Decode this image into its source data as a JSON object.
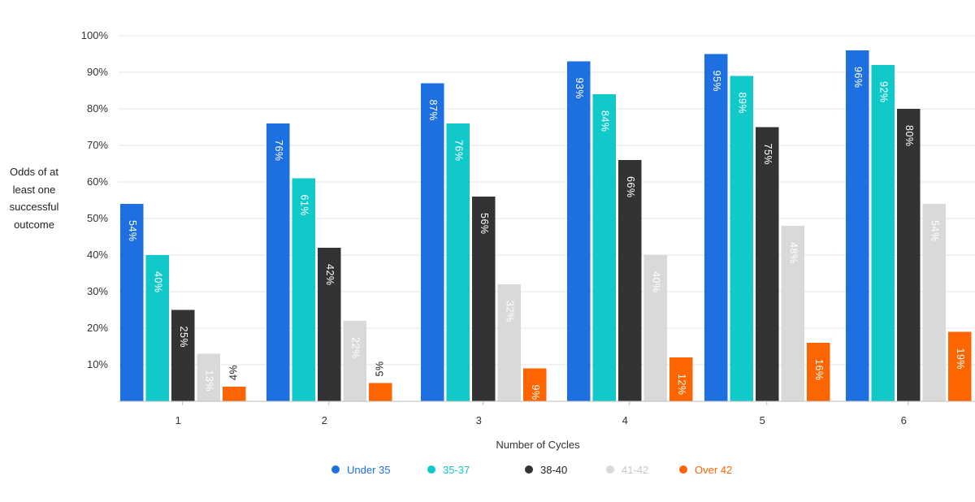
{
  "chart_data": {
    "type": "bar",
    "title": "",
    "ylabel": "Odds of at least one successful outcome",
    "ylabel_lines": [
      "Odds of at",
      "least one",
      "successful",
      "outcome"
    ],
    "xlabel": "Number of Cycles",
    "ylim": [
      0,
      100
    ],
    "yticks": [
      "10%",
      "20%",
      "30%",
      "40%",
      "50%",
      "60%",
      "70%",
      "80%",
      "90%",
      "100%"
    ],
    "categories": [
      "1",
      "2",
      "3",
      "4",
      "5",
      "6"
    ],
    "series": [
      {
        "name": "Under 35",
        "color": "#1e6fe0",
        "values": [
          54,
          76,
          87,
          93,
          95,
          96
        ],
        "labels": [
          "54%",
          "76%",
          "87%",
          "93%",
          "95%",
          "96%"
        ]
      },
      {
        "name": "35-37",
        "color": "#11c9c9",
        "values": [
          40,
          61,
          76,
          84,
          89,
          92
        ],
        "labels": [
          "40%",
          "61%",
          "76%",
          "84%",
          "89%",
          "92%"
        ]
      },
      {
        "name": "38-40",
        "color": "#333333",
        "values": [
          25,
          42,
          56,
          66,
          75,
          80
        ],
        "labels": [
          "25%",
          "42%",
          "56%",
          "66%",
          "75%",
          "80%"
        ]
      },
      {
        "name": "41-42",
        "color": "#d9d9d9",
        "values": [
          13,
          22,
          32,
          40,
          48,
          54
        ],
        "labels": [
          "13%",
          "22%",
          "32%",
          "40%",
          "48%",
          "54%"
        ]
      },
      {
        "name": "Over 42",
        "color": "#fc6500",
        "values": [
          4,
          5,
          9,
          12,
          16,
          19
        ],
        "labels": [
          "4%",
          "5%",
          "9%",
          "12%",
          "16%",
          "19%"
        ]
      }
    ],
    "legend": "bottom-center",
    "grid": true
  }
}
